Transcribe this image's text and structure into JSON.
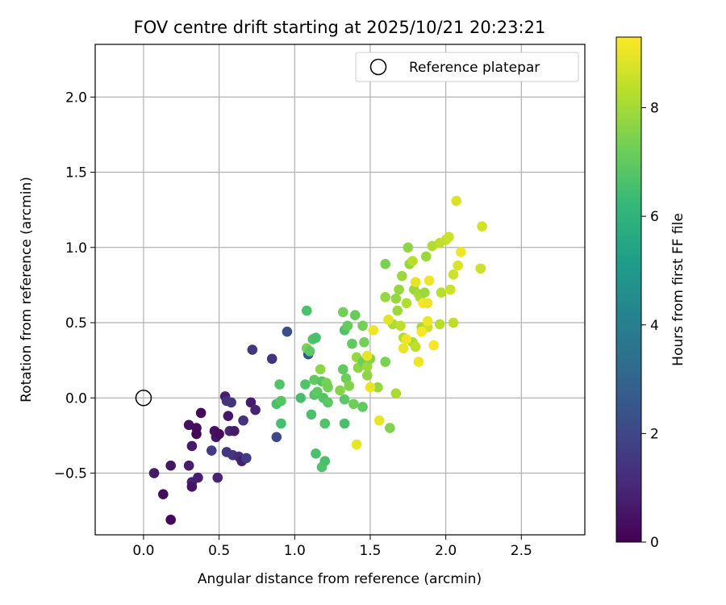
{
  "chart_data": {
    "type": "scatter",
    "title": "FOV centre drift starting at 2025/10/21 20:23:21",
    "xlabel": "Angular distance from reference (arcmin)",
    "ylabel": "Rotation from reference (arcmin)",
    "xlim": [
      -0.32,
      2.92
    ],
    "ylim": [
      -0.91,
      2.35
    ],
    "xticks": [
      0.0,
      0.5,
      1.0,
      1.5,
      2.0,
      2.5
    ],
    "xtick_labels": [
      "0.0",
      "0.5",
      "1.0",
      "1.5",
      "2.0",
      "2.5"
    ],
    "yticks": [
      -0.5,
      0.0,
      0.5,
      1.0,
      1.5,
      2.0
    ],
    "ytick_labels": [
      "−0.5",
      "0.0",
      "0.5",
      "1.0",
      "1.5",
      "2.0"
    ],
    "grid": true,
    "legend": {
      "position": "top-right",
      "label": "Reference platepar"
    },
    "reference_point": {
      "x": 0.0,
      "y": 0.0
    },
    "colorbar": {
      "label": "Hours from first FF file",
      "range": [
        0,
        9.3
      ],
      "ticks": [
        0,
        2,
        4,
        6,
        8
      ],
      "tick_labels": [
        "0",
        "2",
        "4",
        "6",
        "8"
      ],
      "colormap": "viridis"
    },
    "points": [
      {
        "x": 0.07,
        "y": -0.5,
        "h": 0.6
      },
      {
        "x": 0.13,
        "y": -0.64,
        "h": 0.3
      },
      {
        "x": 0.18,
        "y": -0.45,
        "h": 0.5
      },
      {
        "x": 0.18,
        "y": -0.81,
        "h": 0.2
      },
      {
        "x": 0.3,
        "y": -0.18,
        "h": 0.4
      },
      {
        "x": 0.3,
        "y": -0.45,
        "h": 0.7
      },
      {
        "x": 0.32,
        "y": -0.32,
        "h": 0.6
      },
      {
        "x": 0.32,
        "y": -0.56,
        "h": 0.9
      },
      {
        "x": 0.32,
        "y": -0.59,
        "h": 0.5
      },
      {
        "x": 0.35,
        "y": -0.2,
        "h": 0.3
      },
      {
        "x": 0.35,
        "y": -0.24,
        "h": 0.2
      },
      {
        "x": 0.36,
        "y": -0.53,
        "h": 0.8
      },
      {
        "x": 0.38,
        "y": -0.1,
        "h": 0.2
      },
      {
        "x": 0.45,
        "y": -0.35,
        "h": 1.6
      },
      {
        "x": 0.47,
        "y": -0.22,
        "h": 0.4
      },
      {
        "x": 0.48,
        "y": -0.26,
        "h": 0.5
      },
      {
        "x": 0.49,
        "y": -0.53,
        "h": 0.9
      },
      {
        "x": 0.5,
        "y": -0.24,
        "h": 0.3
      },
      {
        "x": 0.54,
        "y": 0.01,
        "h": 0.8
      },
      {
        "x": 0.55,
        "y": -0.02,
        "h": 1.3
      },
      {
        "x": 0.55,
        "y": -0.36,
        "h": 1.5
      },
      {
        "x": 0.56,
        "y": -0.12,
        "h": 0.6
      },
      {
        "x": 0.57,
        "y": -0.22,
        "h": 1.0
      },
      {
        "x": 0.58,
        "y": -0.03,
        "h": 1.4
      },
      {
        "x": 0.59,
        "y": -0.38,
        "h": 1.5
      },
      {
        "x": 0.6,
        "y": -0.22,
        "h": 0.7
      },
      {
        "x": 0.63,
        "y": -0.39,
        "h": 1.2
      },
      {
        "x": 0.65,
        "y": -0.42,
        "h": 0.8
      },
      {
        "x": 0.66,
        "y": -0.15,
        "h": 1.3
      },
      {
        "x": 0.68,
        "y": -0.4,
        "h": 1.7
      },
      {
        "x": 0.71,
        "y": -0.03,
        "h": 0.7
      },
      {
        "x": 0.72,
        "y": 0.32,
        "h": 1.5
      },
      {
        "x": 0.74,
        "y": -0.08,
        "h": 0.9
      },
      {
        "x": 0.85,
        "y": 0.26,
        "h": 1.4
      },
      {
        "x": 0.88,
        "y": -0.26,
        "h": 2.0
      },
      {
        "x": 0.95,
        "y": 0.44,
        "h": 2.2
      },
      {
        "x": 1.09,
        "y": 0.29,
        "h": 2.4
      },
      {
        "x": 0.88,
        "y": -0.04,
        "h": 6.6
      },
      {
        "x": 0.9,
        "y": 0.09,
        "h": 6.7
      },
      {
        "x": 0.91,
        "y": -0.02,
        "h": 6.8
      },
      {
        "x": 0.91,
        "y": -0.17,
        "h": 6.5
      },
      {
        "x": 1.04,
        "y": 0.0,
        "h": 6.5
      },
      {
        "x": 1.07,
        "y": 0.09,
        "h": 6.7
      },
      {
        "x": 1.08,
        "y": 0.33,
        "h": 7.4
      },
      {
        "x": 1.08,
        "y": 0.58,
        "h": 6.6
      },
      {
        "x": 1.1,
        "y": 0.31,
        "h": 6.9
      },
      {
        "x": 1.11,
        "y": -0.11,
        "h": 6.6
      },
      {
        "x": 1.12,
        "y": 0.39,
        "h": 6.7
      },
      {
        "x": 1.13,
        "y": 0.02,
        "h": 6.8
      },
      {
        "x": 1.13,
        "y": 0.12,
        "h": 7.0
      },
      {
        "x": 1.14,
        "y": -0.37,
        "h": 6.6
      },
      {
        "x": 1.14,
        "y": 0.4,
        "h": 6.6
      },
      {
        "x": 1.15,
        "y": 0.04,
        "h": 6.9
      },
      {
        "x": 1.17,
        "y": 0.19,
        "h": 7.7
      },
      {
        "x": 1.18,
        "y": -0.46,
        "h": 6.7
      },
      {
        "x": 1.18,
        "y": 0.11,
        "h": 6.8
      },
      {
        "x": 1.19,
        "y": 0.0,
        "h": 6.8
      },
      {
        "x": 1.2,
        "y": -0.42,
        "h": 6.6
      },
      {
        "x": 1.2,
        "y": -0.17,
        "h": 6.7
      },
      {
        "x": 1.21,
        "y": 0.1,
        "h": 7.4
      },
      {
        "x": 1.22,
        "y": -0.03,
        "h": 6.9
      },
      {
        "x": 1.22,
        "y": 0.07,
        "h": 7.3
      },
      {
        "x": 1.3,
        "y": 0.05,
        "h": 7.6
      },
      {
        "x": 1.32,
        "y": 0.19,
        "h": 7.0
      },
      {
        "x": 1.32,
        "y": 0.57,
        "h": 7.3
      },
      {
        "x": 1.33,
        "y": -0.17,
        "h": 6.6
      },
      {
        "x": 1.33,
        "y": 0.45,
        "h": 6.7
      },
      {
        "x": 1.33,
        "y": -0.01,
        "h": 6.9
      },
      {
        "x": 1.34,
        "y": 0.13,
        "h": 7.2
      },
      {
        "x": 1.35,
        "y": 0.48,
        "h": 7.1
      },
      {
        "x": 1.36,
        "y": 0.08,
        "h": 7.5
      },
      {
        "x": 1.38,
        "y": 0.36,
        "h": 7.0
      },
      {
        "x": 1.39,
        "y": -0.04,
        "h": 7.2
      },
      {
        "x": 1.4,
        "y": 0.55,
        "h": 7.1
      },
      {
        "x": 1.41,
        "y": 0.27,
        "h": 7.8
      },
      {
        "x": 1.42,
        "y": 0.2,
        "h": 7.7
      },
      {
        "x": 1.45,
        "y": -0.06,
        "h": 7.0
      },
      {
        "x": 1.45,
        "y": 0.24,
        "h": 7.2
      },
      {
        "x": 1.45,
        "y": 0.48,
        "h": 7.3
      },
      {
        "x": 1.46,
        "y": 0.37,
        "h": 7.3
      },
      {
        "x": 1.48,
        "y": 0.15,
        "h": 7.7
      },
      {
        "x": 1.48,
        "y": 0.21,
        "h": 7.9
      },
      {
        "x": 1.5,
        "y": 0.26,
        "h": 7.6
      },
      {
        "x": 1.55,
        "y": 0.07,
        "h": 7.8
      },
      {
        "x": 1.6,
        "y": 0.24,
        "h": 7.4
      },
      {
        "x": 1.6,
        "y": 0.67,
        "h": 7.8
      },
      {
        "x": 1.6,
        "y": 0.89,
        "h": 7.4
      },
      {
        "x": 1.63,
        "y": -0.2,
        "h": 7.5
      },
      {
        "x": 1.65,
        "y": 0.49,
        "h": 8.1
      },
      {
        "x": 1.67,
        "y": 0.66,
        "h": 7.8
      },
      {
        "x": 1.67,
        "y": 0.03,
        "h": 8.1
      },
      {
        "x": 1.68,
        "y": 0.58,
        "h": 7.9
      },
      {
        "x": 1.69,
        "y": 0.72,
        "h": 7.8
      },
      {
        "x": 1.7,
        "y": 0.48,
        "h": 8.4
      },
      {
        "x": 1.71,
        "y": 0.81,
        "h": 7.9
      },
      {
        "x": 1.72,
        "y": 0.4,
        "h": 8.2
      },
      {
        "x": 1.74,
        "y": 0.63,
        "h": 8.2
      },
      {
        "x": 1.75,
        "y": 1.0,
        "h": 7.7
      },
      {
        "x": 1.76,
        "y": 0.89,
        "h": 7.8
      },
      {
        "x": 1.78,
        "y": 0.37,
        "h": 8.1
      },
      {
        "x": 1.78,
        "y": 0.91,
        "h": 8.3
      },
      {
        "x": 1.79,
        "y": 0.72,
        "h": 7.9
      },
      {
        "x": 1.8,
        "y": 0.34,
        "h": 8.4
      },
      {
        "x": 1.82,
        "y": 0.69,
        "h": 8.0
      },
      {
        "x": 1.83,
        "y": 0.67,
        "h": 8.1
      },
      {
        "x": 1.84,
        "y": 0.47,
        "h": 8.1
      },
      {
        "x": 1.86,
        "y": 0.7,
        "h": 7.9
      },
      {
        "x": 1.87,
        "y": 0.94,
        "h": 7.9
      },
      {
        "x": 1.88,
        "y": 0.47,
        "h": 8.6
      },
      {
        "x": 1.91,
        "y": 1.01,
        "h": 8.2
      },
      {
        "x": 1.96,
        "y": 0.49,
        "h": 8.3
      },
      {
        "x": 1.96,
        "y": 1.03,
        "h": 8.4
      },
      {
        "x": 1.97,
        "y": 0.7,
        "h": 8.3
      },
      {
        "x": 2.0,
        "y": 1.05,
        "h": 8.5
      },
      {
        "x": 2.02,
        "y": 1.07,
        "h": 8.6
      },
      {
        "x": 2.03,
        "y": 0.72,
        "h": 8.6
      },
      {
        "x": 2.05,
        "y": 0.82,
        "h": 8.6
      },
      {
        "x": 2.05,
        "y": 0.5,
        "h": 8.4
      },
      {
        "x": 2.07,
        "y": 1.31,
        "h": 8.8
      },
      {
        "x": 2.08,
        "y": 0.88,
        "h": 8.8
      },
      {
        "x": 2.23,
        "y": 0.86,
        "h": 8.6
      },
      {
        "x": 2.24,
        "y": 1.14,
        "h": 8.7
      },
      {
        "x": 1.41,
        "y": -0.31,
        "h": 9.0
      },
      {
        "x": 1.48,
        "y": 0.28,
        "h": 9.0
      },
      {
        "x": 1.5,
        "y": 0.07,
        "h": 9.0
      },
      {
        "x": 1.52,
        "y": 0.45,
        "h": 9.1
      },
      {
        "x": 1.56,
        "y": -0.15,
        "h": 9.0
      },
      {
        "x": 1.62,
        "y": 0.52,
        "h": 8.9
      },
      {
        "x": 1.72,
        "y": 0.33,
        "h": 9.0
      },
      {
        "x": 1.74,
        "y": 0.39,
        "h": 9.1
      },
      {
        "x": 1.8,
        "y": 0.77,
        "h": 9.0
      },
      {
        "x": 1.82,
        "y": 0.24,
        "h": 9.1
      },
      {
        "x": 1.84,
        "y": 0.44,
        "h": 9.2
      },
      {
        "x": 1.85,
        "y": 0.63,
        "h": 9.2
      },
      {
        "x": 1.88,
        "y": 0.63,
        "h": 9.1
      },
      {
        "x": 1.88,
        "y": 0.51,
        "h": 9.1
      },
      {
        "x": 1.89,
        "y": 0.78,
        "h": 9.1
      },
      {
        "x": 1.92,
        "y": 0.35,
        "h": 9.2
      },
      {
        "x": 2.1,
        "y": 0.97,
        "h": 9.1
      }
    ]
  }
}
